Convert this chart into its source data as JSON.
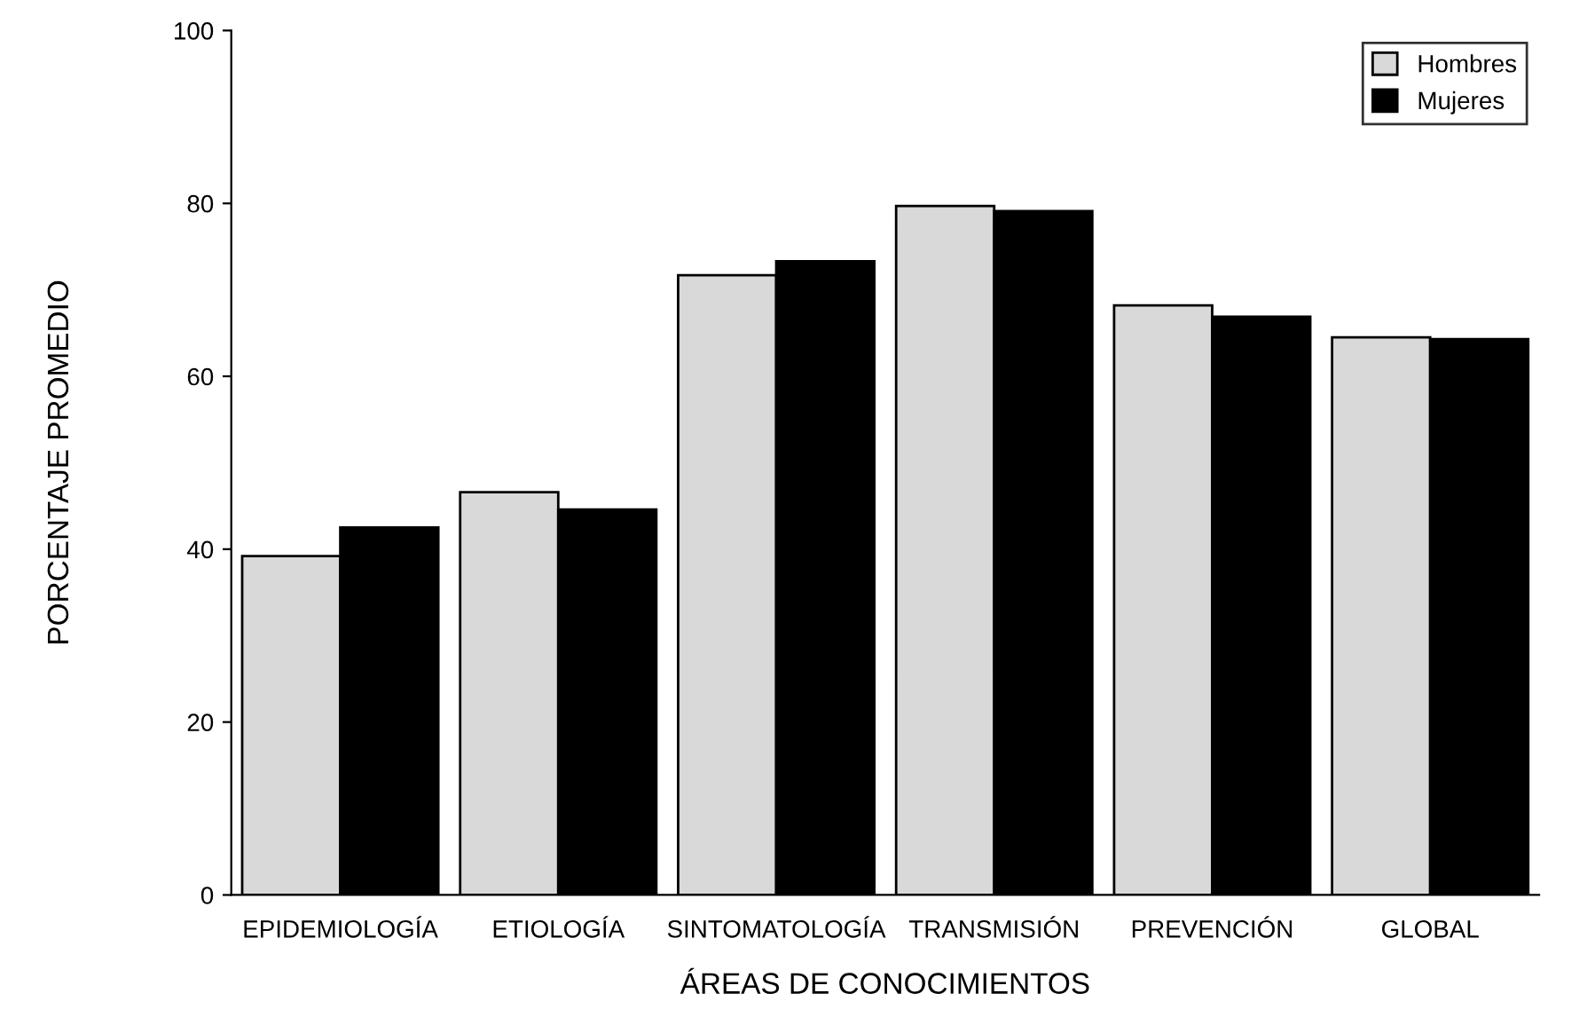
{
  "chart_data": {
    "type": "bar",
    "xlabel": "ÁREAS DE CONOCIMIENTOS",
    "ylabel": "PORCENTAJE PROMEDIO",
    "categories": [
      "EPIDEMIOLOGÍA",
      "ETIOLOGÍA",
      "SINTOMATOLOGÍA",
      "TRANSMISIÓN",
      "PREVENCIÓN",
      "GLOBAL"
    ],
    "series": [
      {
        "name": "Hombres",
        "color": "#d9d9d9",
        "values": [
          39.2,
          46.6,
          71.7,
          79.7,
          68.2,
          64.5
        ]
      },
      {
        "name": "Mujeres",
        "color": "#000000",
        "values": [
          42.5,
          44.6,
          73.3,
          79.1,
          66.9,
          64.3
        ]
      }
    ],
    "ylim": [
      0,
      100
    ],
    "yticks": [
      0,
      20,
      40,
      60,
      80,
      100
    ],
    "grid": false,
    "legend": "top right"
  }
}
